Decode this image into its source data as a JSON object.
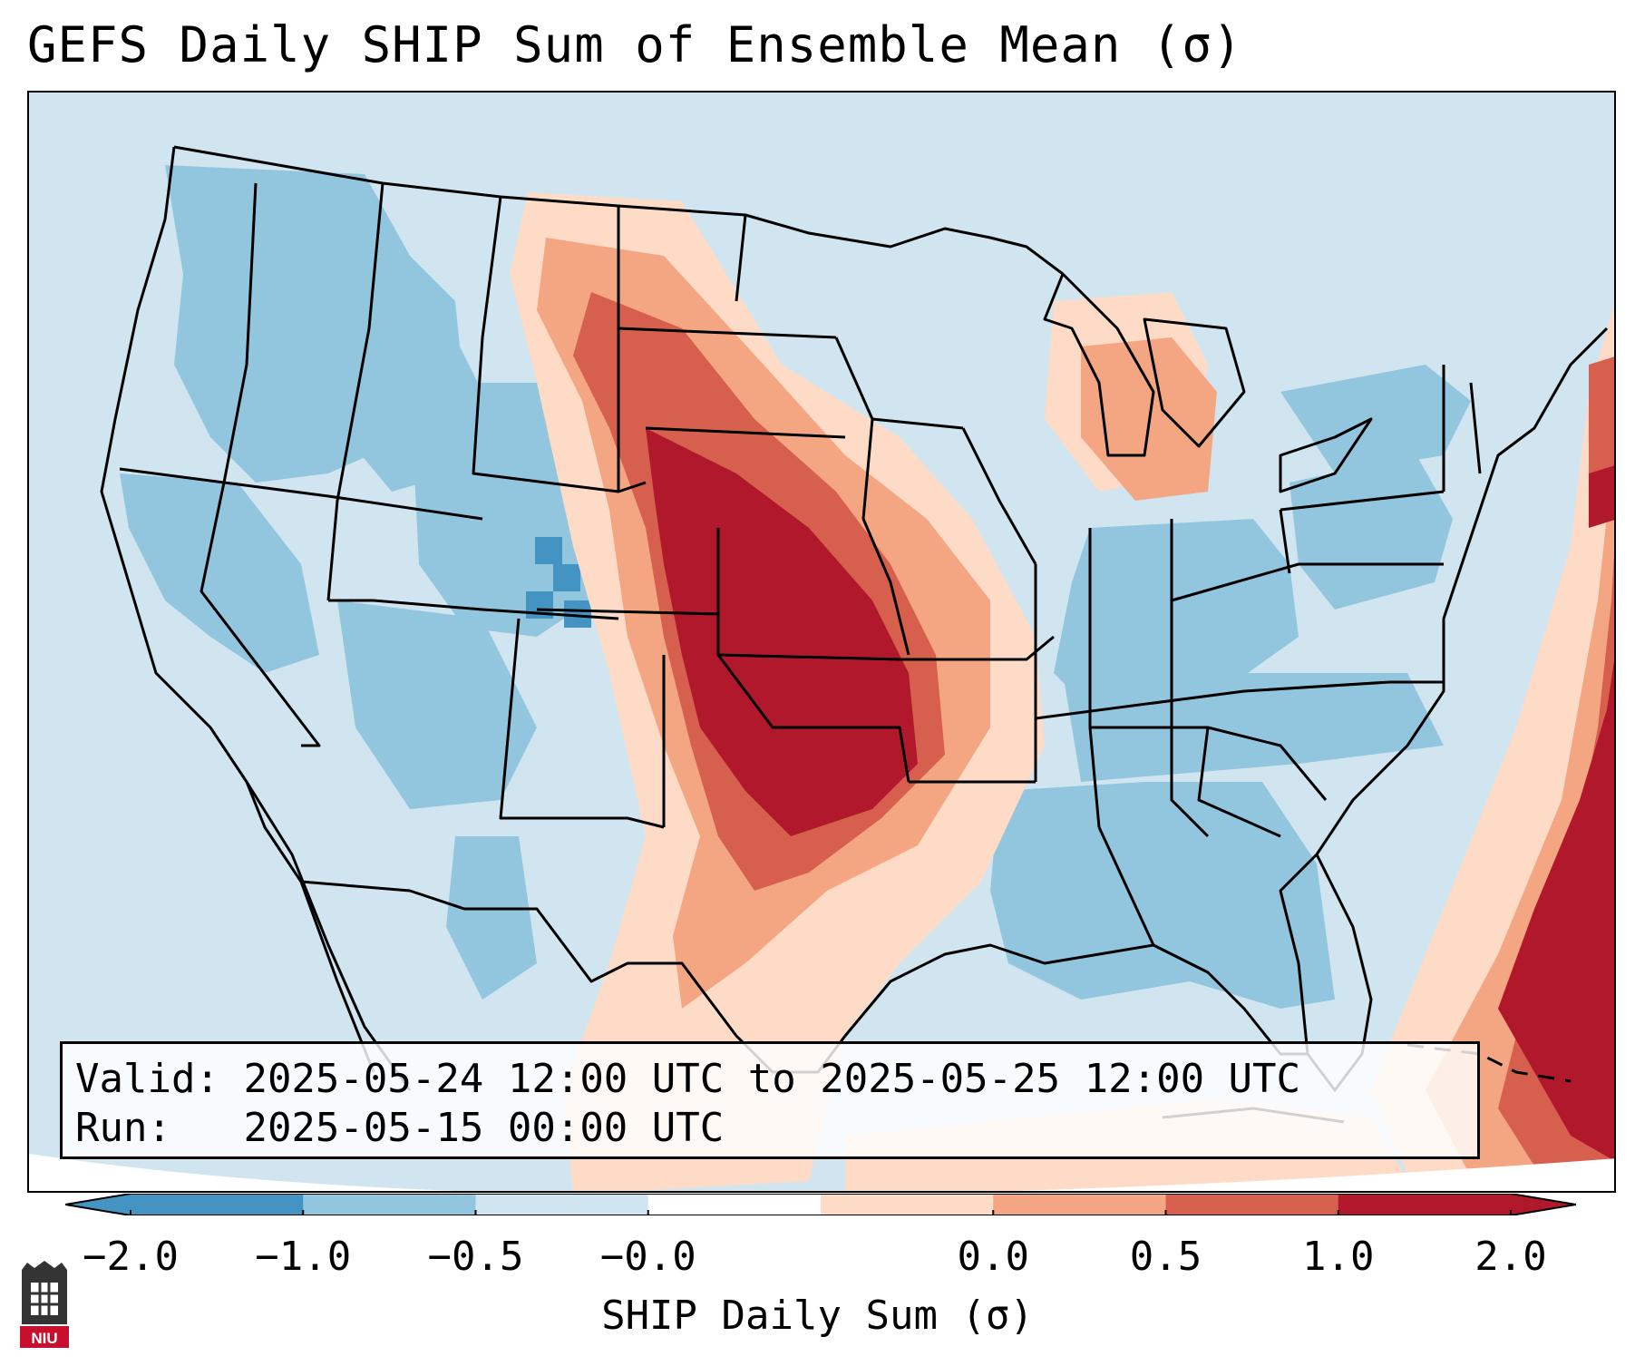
{
  "title": "GEFS Daily SHIP Sum of Ensemble Mean (σ)",
  "info_box": {
    "valid_label": "Valid:",
    "valid_value": "2025-05-24 12:00 UTC to 2025-05-25 12:00 UTC",
    "run_label": "Run:",
    "run_value": "2025-05-15 00:00 UTC"
  },
  "colorbar": {
    "label": "SHIP Daily Sum (σ)",
    "ticks": [
      "−2.0",
      "−1.0",
      "−0.5",
      "−0.0",
      "0.0",
      "0.5",
      "1.0",
      "2.0"
    ],
    "colors": [
      "#4393c3",
      "#92c5de",
      "#d1e5f0",
      "#ffffff",
      "#fddbc7",
      "#f4a582",
      "#d6604d",
      "#b2182b"
    ],
    "under_color": "#4393c3",
    "over_color": "#b2182b"
  },
  "logo": {
    "text": "NIU",
    "color": "#c8102e"
  },
  "colors": {
    "ocean_background": "#d1e5f0",
    "border_line": "#000000"
  }
}
